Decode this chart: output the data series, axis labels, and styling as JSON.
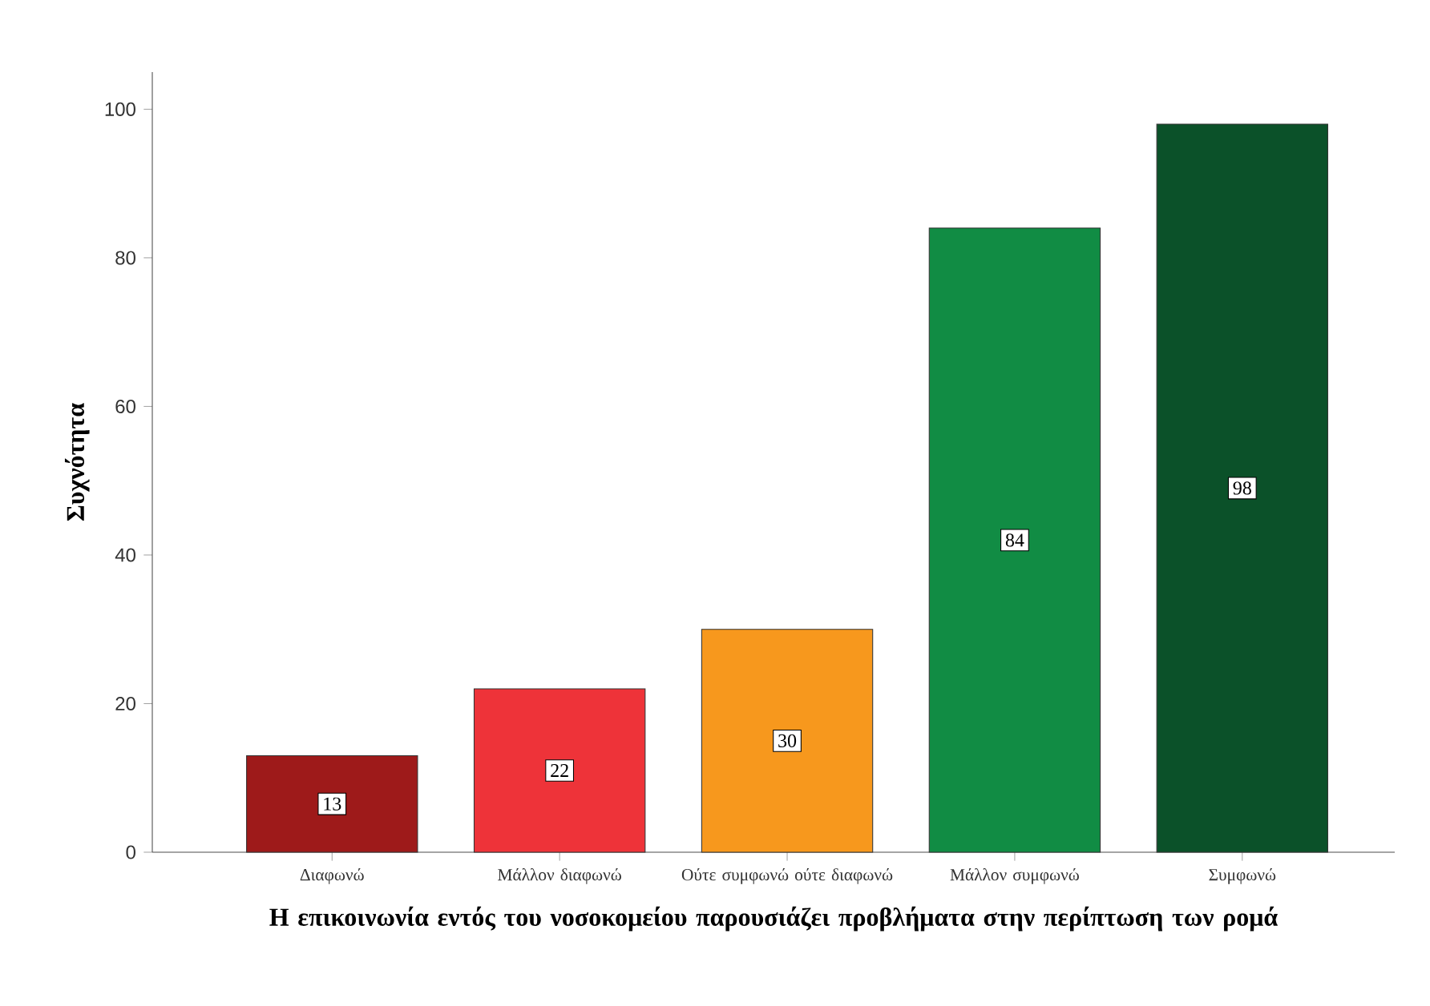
{
  "chart_data": {
    "type": "bar",
    "xlabel": "Η επικοινωνία εντός του νοσοκομείου παρουσιάζει προβλήματα στην περίπτωση των ρομά",
    "ylabel": "Συχνότητα",
    "categories": [
      "Διαφωνώ",
      "Μάλλον διαφωνώ",
      "Ούτε συμφωνώ ούτε διαφωνώ",
      "Μάλλον συμφωνώ",
      "Συμφωνώ"
    ],
    "values": [
      13,
      22,
      30,
      84,
      98
    ],
    "colors": [
      "#9e1a1a",
      "#ee3339",
      "#f7981d",
      "#118c44",
      "#0b5129"
    ],
    "ylim": [
      0,
      105
    ],
    "yticks": [
      0,
      20,
      40,
      60,
      80,
      100
    ],
    "data_labels": true
  }
}
